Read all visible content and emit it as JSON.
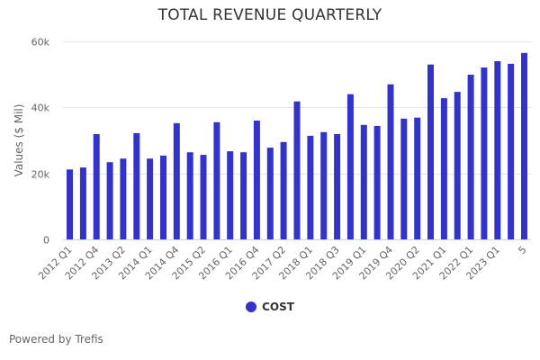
{
  "footer": {
    "text": "Powered by Trefis"
  },
  "chart_data": {
    "type": "bar",
    "title": "TOTAL REVENUE QUARTERLY",
    "xlabel": "",
    "ylabel": "Values ($ Mil)",
    "ylim": [
      0,
      60000
    ],
    "yticks": [
      0,
      20000,
      40000,
      60000
    ],
    "ytick_labels": [
      "0",
      "20k",
      "40k",
      "60k"
    ],
    "grid": true,
    "legend_position": "bottom-center",
    "color": "#3333cc",
    "x_tick_labels": [
      {
        "index": 0,
        "label": "2012 Q1"
      },
      {
        "index": 2,
        "label": "2012 Q4"
      },
      {
        "index": 4,
        "label": "2013 Q2"
      },
      {
        "index": 6,
        "label": "2014 Q1"
      },
      {
        "index": 8,
        "label": "2014 Q4"
      },
      {
        "index": 10,
        "label": "2015 Q2"
      },
      {
        "index": 12,
        "label": "2016 Q1"
      },
      {
        "index": 14,
        "label": "2016 Q4"
      },
      {
        "index": 16,
        "label": "2017 Q2"
      },
      {
        "index": 18,
        "label": "2018 Q1"
      },
      {
        "index": 20,
        "label": "2018 Q3"
      },
      {
        "index": 22,
        "label": "2019 Q1"
      },
      {
        "index": 24,
        "label": "2019 Q4"
      },
      {
        "index": 26,
        "label": "2020 Q2"
      },
      {
        "index": 28,
        "label": "2021 Q1"
      },
      {
        "index": 30,
        "label": "2022 Q1"
      },
      {
        "index": 32,
        "label": "2023 Q1"
      },
      {
        "index": 34,
        "label": "5"
      }
    ],
    "series": [
      {
        "name": "COST",
        "values": [
          21200,
          21800,
          31900,
          23400,
          24500,
          32200,
          24500,
          25400,
          35200,
          26400,
          25600,
          35500,
          26700,
          26400,
          36000,
          27800,
          29500,
          41800,
          31400,
          32500,
          31900,
          44000,
          34700,
          34400,
          47000,
          36600,
          36900,
          53000,
          42800,
          44700,
          49900,
          52100,
          54000,
          53200,
          56500
        ]
      }
    ]
  }
}
